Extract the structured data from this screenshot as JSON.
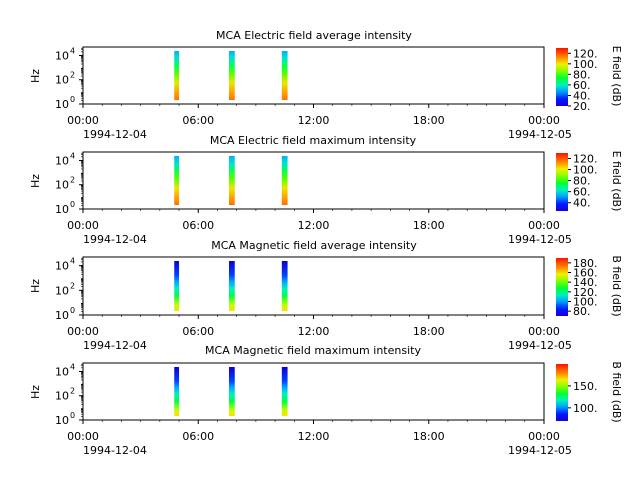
{
  "chart_data": [
    {
      "type": "heatmap",
      "title": "MCA  Electric field average intensity",
      "ylabel": "Hz",
      "yscale": "log",
      "ylim": [
        1,
        50000
      ],
      "y_ticks": [
        {
          "base": "10",
          "exp": "0",
          "value": 1
        },
        {
          "base": "10",
          "exp": "2",
          "value": 100
        },
        {
          "base": "10",
          "exp": "4",
          "value": 10000
        }
      ],
      "x_ticks": [
        "00:00",
        "06:00",
        "12:00",
        "18:00",
        "00:00"
      ],
      "x_range_hours": [
        0,
        24
      ],
      "x_dates": [
        "1994-12-04",
        "1994-12-05"
      ],
      "colorbar": {
        "label": "E field (dB)",
        "ticks": [
          "20.",
          "40.",
          "60.",
          "80.",
          "100.",
          "120."
        ],
        "range": [
          20,
          130
        ]
      },
      "bursts": [
        {
          "start": 4.75,
          "end": 5.0
        },
        {
          "start": 7.6,
          "end": 7.9
        },
        {
          "start": 10.35,
          "end": 10.65
        }
      ]
    },
    {
      "type": "heatmap",
      "title": "MCA  Electric field maximum intensity",
      "ylabel": "Hz",
      "yscale": "log",
      "ylim": [
        1,
        50000
      ],
      "y_ticks": [
        {
          "base": "10",
          "exp": "0",
          "value": 1
        },
        {
          "base": "10",
          "exp": "2",
          "value": 100
        },
        {
          "base": "10",
          "exp": "4",
          "value": 10000
        }
      ],
      "x_ticks": [
        "00:00",
        "06:00",
        "12:00",
        "18:00",
        "00:00"
      ],
      "x_range_hours": [
        0,
        24
      ],
      "x_dates": [
        "1994-12-04",
        "1994-12-05"
      ],
      "colorbar": {
        "label": "E field (dB)",
        "ticks": [
          "40.",
          "60.",
          "80.",
          "100.",
          "120."
        ],
        "range": [
          25,
          130
        ]
      },
      "bursts": [
        {
          "start": 4.75,
          "end": 5.0
        },
        {
          "start": 7.6,
          "end": 7.9
        },
        {
          "start": 10.35,
          "end": 10.65
        }
      ]
    },
    {
      "type": "heatmap",
      "title": "MCA  Magnetic field average intensity",
      "ylabel": "Hz",
      "yscale": "log",
      "ylim": [
        1,
        50000
      ],
      "y_ticks": [
        {
          "base": "10",
          "exp": "0",
          "value": 1
        },
        {
          "base": "10",
          "exp": "2",
          "value": 100
        },
        {
          "base": "10",
          "exp": "4",
          "value": 10000
        }
      ],
      "x_ticks": [
        "00:00",
        "06:00",
        "12:00",
        "18:00",
        "00:00"
      ],
      "x_range_hours": [
        0,
        24
      ],
      "x_dates": [
        "1994-12-04",
        "1994-12-05"
      ],
      "colorbar": {
        "label": "B field (dB)",
        "ticks": [
          "80.",
          "100.",
          "120.",
          "140.",
          "160.",
          "180."
        ],
        "range": [
          70,
          190
        ]
      },
      "bursts": [
        {
          "start": 4.75,
          "end": 5.0
        },
        {
          "start": 7.6,
          "end": 7.9
        },
        {
          "start": 10.35,
          "end": 10.65
        }
      ]
    },
    {
      "type": "heatmap",
      "title": "MCA  Magnetic field maximum intensity",
      "ylabel": "Hz",
      "yscale": "log",
      "ylim": [
        1,
        50000
      ],
      "y_ticks": [
        {
          "base": "10",
          "exp": "0",
          "value": 1
        },
        {
          "base": "10",
          "exp": "2",
          "value": 100
        },
        {
          "base": "10",
          "exp": "4",
          "value": 10000
        }
      ],
      "x_ticks": [
        "00:00",
        "06:00",
        "12:00",
        "18:00",
        "00:00"
      ],
      "x_range_hours": [
        0,
        24
      ],
      "x_dates": [
        "1994-12-04",
        "1994-12-05"
      ],
      "colorbar": {
        "label": "B field (dB)",
        "ticks": [
          "100.",
          "150."
        ],
        "range": [
          70,
          200
        ]
      },
      "bursts": [
        {
          "start": 4.75,
          "end": 5.0
        },
        {
          "start": 7.6,
          "end": 7.9
        },
        {
          "start": 10.35,
          "end": 10.65
        }
      ]
    }
  ]
}
